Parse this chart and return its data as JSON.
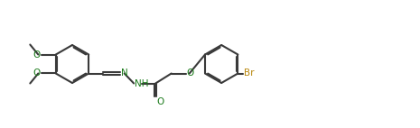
{
  "bg": "#ffffff",
  "lc": "#3a3a3a",
  "gc": "#1a7a1a",
  "brc": "#b8860b",
  "lw": 1.5,
  "fs": 7.5,
  "figw": 4.65,
  "figh": 1.42,
  "dpi": 100,
  "r": 0.42,
  "xlim": [
    0.0,
    9.3
  ],
  "ylim": [
    0.2,
    2.3
  ]
}
